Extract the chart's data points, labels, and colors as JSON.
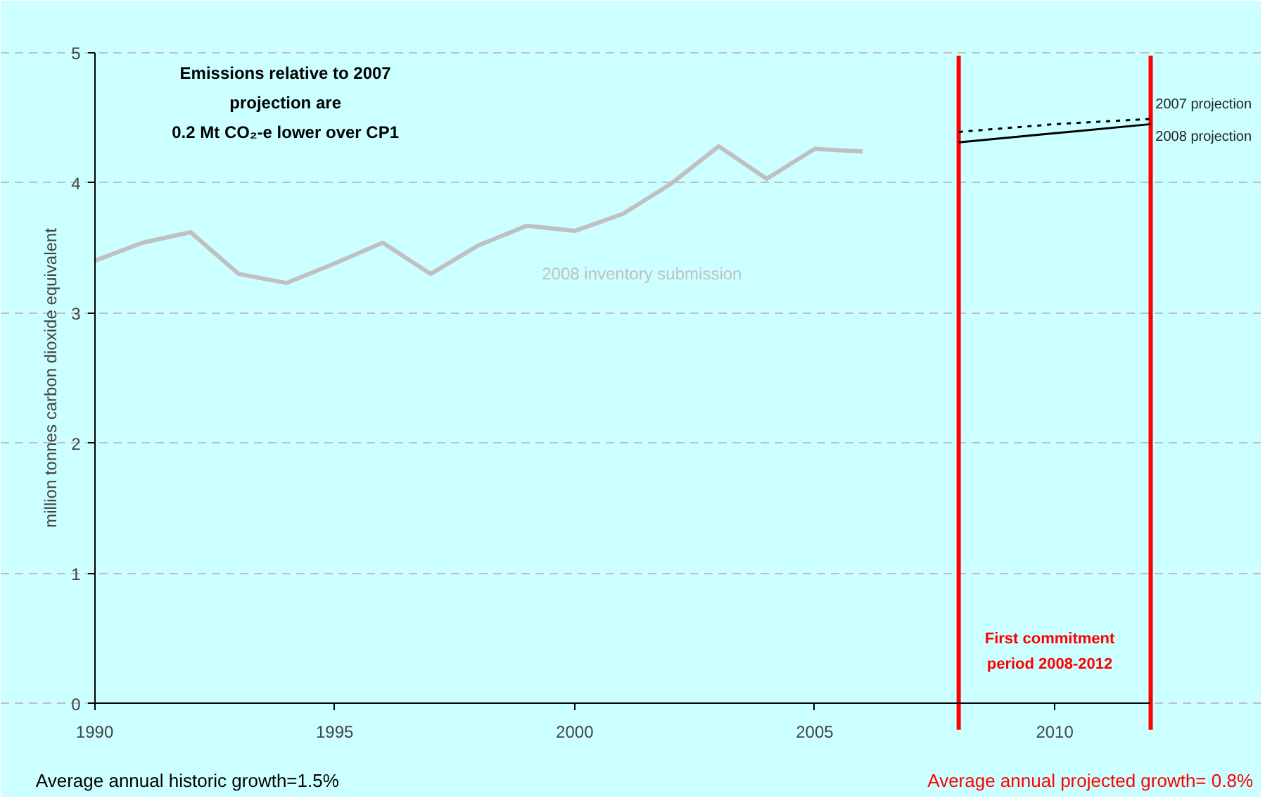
{
  "chart_data": {
    "type": "line",
    "ylabel": "million tonnes carbon dioxide equivalent",
    "xlim": [
      1990,
      2012
    ],
    "xticks": [
      1990,
      1995,
      2000,
      2005,
      2010
    ],
    "ylim": [
      0,
      5
    ],
    "yticks": [
      0,
      1,
      2,
      3,
      4,
      5
    ],
    "grid": "y",
    "legend": false,
    "marker": "none",
    "series": [
      {
        "name": "2008 inventory submission",
        "color": "#c0c0c0",
        "line_style": "solid",
        "x": [
          1990,
          1991,
          1992,
          1993,
          1994,
          1995,
          1996,
          1997,
          1998,
          1999,
          2000,
          2001,
          2002,
          2003,
          2004,
          2005,
          2006
        ],
        "values": [
          3.4,
          3.54,
          3.62,
          3.3,
          3.23,
          3.38,
          3.54,
          3.3,
          3.52,
          3.67,
          3.63,
          3.76,
          3.99,
          4.28,
          4.03,
          4.26,
          4.24
        ]
      },
      {
        "name": "2007 projection",
        "color": "#000000",
        "line_style": "dotted",
        "x": [
          2008,
          2010,
          2012
        ],
        "values": [
          4.39,
          4.45,
          4.49
        ]
      },
      {
        "name": "2008 projection",
        "color": "#000000",
        "line_style": "solid",
        "x": [
          2008,
          2010,
          2012
        ],
        "values": [
          4.31,
          4.38,
          4.45
        ]
      }
    ],
    "ref_lines": [
      {
        "axis": "x",
        "value": 2008,
        "color": "#ff0000"
      },
      {
        "axis": "x",
        "value": 2012,
        "color": "#ff0000"
      }
    ],
    "annotations": [
      "Emissions relative to 2007\nprojection are\n0.2 Mt CO₂-e lower over CP1",
      "First commitment\nperiod 2008-2012",
      "Average annual historic growth=1.5%",
      "Average annual projected growth= 0.8%"
    ]
  }
}
